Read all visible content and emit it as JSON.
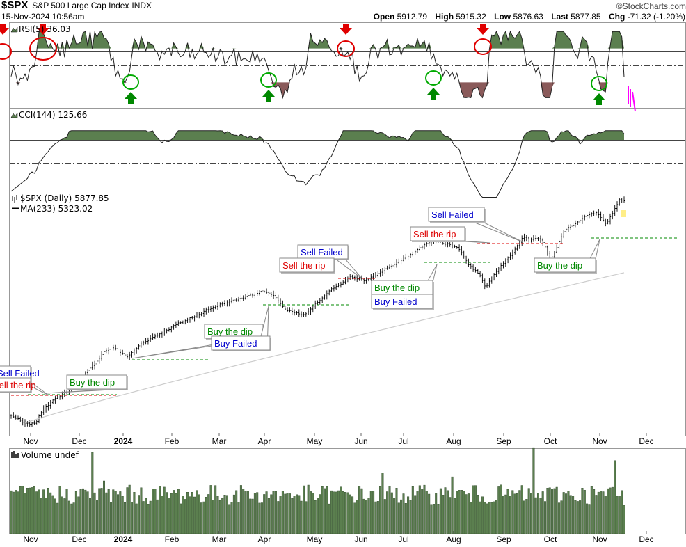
{
  "header": {
    "symbol": "$SPX",
    "name": "S&P 500 Large Cap Index",
    "exchange": "INDX",
    "datetime": "15-Nov-2024 10:56am",
    "watermark": "©StockCharts.com",
    "quote": [
      {
        "label": "Open",
        "value": "5912.79"
      },
      {
        "label": "High",
        "value": "5915.32"
      },
      {
        "label": "Low",
        "value": "5876.63"
      },
      {
        "label": "Last",
        "value": "5877.85"
      },
      {
        "label": "Chg",
        "value": "-71.32 (-1.20%)"
      }
    ]
  },
  "chart_data": [
    {
      "type": "line",
      "panel": "RSI",
      "label": "RSI(5) 36.03",
      "latest": 36.03,
      "reference_lines": [
        70,
        50,
        30
      ],
      "ylim": [
        0,
        100
      ],
      "fill_color": "#5b7f4f",
      "signal_markers": [
        "sell",
        "sell",
        "buy",
        "buy",
        "sell",
        "buy",
        "sell",
        "buy"
      ]
    },
    {
      "type": "line",
      "panel": "CCI",
      "label": "CCI(144) 125.66",
      "latest": 125.66,
      "reference_lines": [
        100,
        0,
        -100
      ],
      "fill_color": "#5b7f4f"
    },
    {
      "type": "line",
      "panel": "Price",
      "label": "$SPX (Daily) 5877.85",
      "ma_label": "MA(233) 5323.02",
      "last": 5877.85,
      "ma_last": 5323.02,
      "x_tick_labels": [
        "Nov",
        "Dec",
        "2024",
        "Feb",
        "Mar",
        "Apr",
        "May",
        "Jun",
        "Jul",
        "Aug",
        "Sep",
        "Oct",
        "Nov",
        "Dec"
      ],
      "annotations": [
        {
          "text": "Sell Failed",
          "color": "#0000cc"
        },
        {
          "text": "Sell the rip",
          "color": "#dd0000"
        },
        {
          "text": "Buy the dip",
          "color": "#008800"
        },
        {
          "text": "Buy the dip",
          "color": "#008800"
        },
        {
          "text": "Buy Failed",
          "color": "#0000cc"
        },
        {
          "text": "Sell Failed",
          "color": "#0000cc"
        },
        {
          "text": "Sell the rip",
          "color": "#dd0000"
        },
        {
          "text": "Buy the dip",
          "color": "#008800"
        },
        {
          "text": "Buy Failed",
          "color": "#0000cc"
        },
        {
          "text": "Sell the rip",
          "color": "#dd0000"
        },
        {
          "text": "Sell Failed",
          "color": "#0000cc"
        },
        {
          "text": "Buy the dip",
          "color": "#008800"
        }
      ]
    },
    {
      "type": "bar",
      "panel": "Volume",
      "label": "Volume undef",
      "bar_color": "#5b7f4f",
      "x_tick_labels": [
        "Nov",
        "Dec",
        "2024",
        "Feb",
        "Mar",
        "Apr",
        "May",
        "Jun",
        "Jul",
        "Aug",
        "Sep",
        "Oct",
        "Nov",
        "Dec"
      ]
    }
  ]
}
